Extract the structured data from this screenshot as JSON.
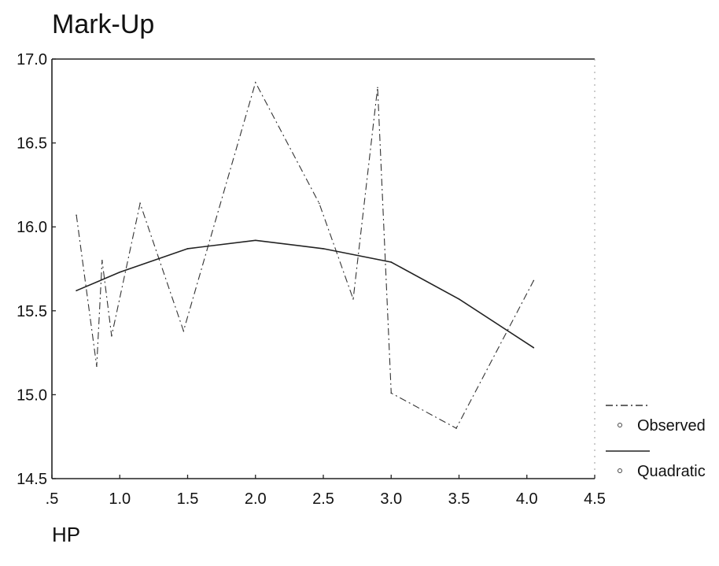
{
  "chart_data": {
    "type": "line",
    "title": "Mark-Up",
    "xlabel": "HP",
    "ylabel": "",
    "xlim": [
      0.5,
      4.5
    ],
    "ylim": [
      14.5,
      17.0
    ],
    "x_ticks": [
      0.5,
      1.0,
      1.5,
      2.0,
      2.5,
      3.0,
      3.5,
      4.0,
      4.5
    ],
    "x_tick_labels": [
      ".5",
      "1.0",
      "1.5",
      "2.0",
      "2.5",
      "3.0",
      "3.5",
      "4.0",
      "4.5"
    ],
    "y_ticks": [
      14.5,
      15.0,
      15.5,
      16.0,
      16.5,
      17.0
    ],
    "y_tick_labels": [
      "14.5",
      "15.0",
      "15.5",
      "16.0",
      "16.5",
      "17.0"
    ],
    "grid": false,
    "legend_position": "right",
    "series": [
      {
        "name": "Observed",
        "style": "dash-dot",
        "color": "#333333",
        "x": [
          0.68,
          0.83,
          0.87,
          0.94,
          1.15,
          1.47,
          2.0,
          2.47,
          2.72,
          2.9,
          3.0,
          3.48,
          4.05
        ],
        "y": [
          16.07,
          15.17,
          15.8,
          15.35,
          16.14,
          15.38,
          16.86,
          16.14,
          15.57,
          16.83,
          15.01,
          14.8,
          15.68
        ]
      },
      {
        "name": "Quadratic",
        "style": "solid",
        "color": "#222222",
        "x": [
          0.68,
          1.0,
          1.5,
          2.0,
          2.5,
          3.0,
          3.5,
          4.05
        ],
        "y": [
          15.62,
          15.73,
          15.87,
          15.92,
          15.87,
          15.79,
          15.57,
          15.28
        ]
      }
    ]
  }
}
